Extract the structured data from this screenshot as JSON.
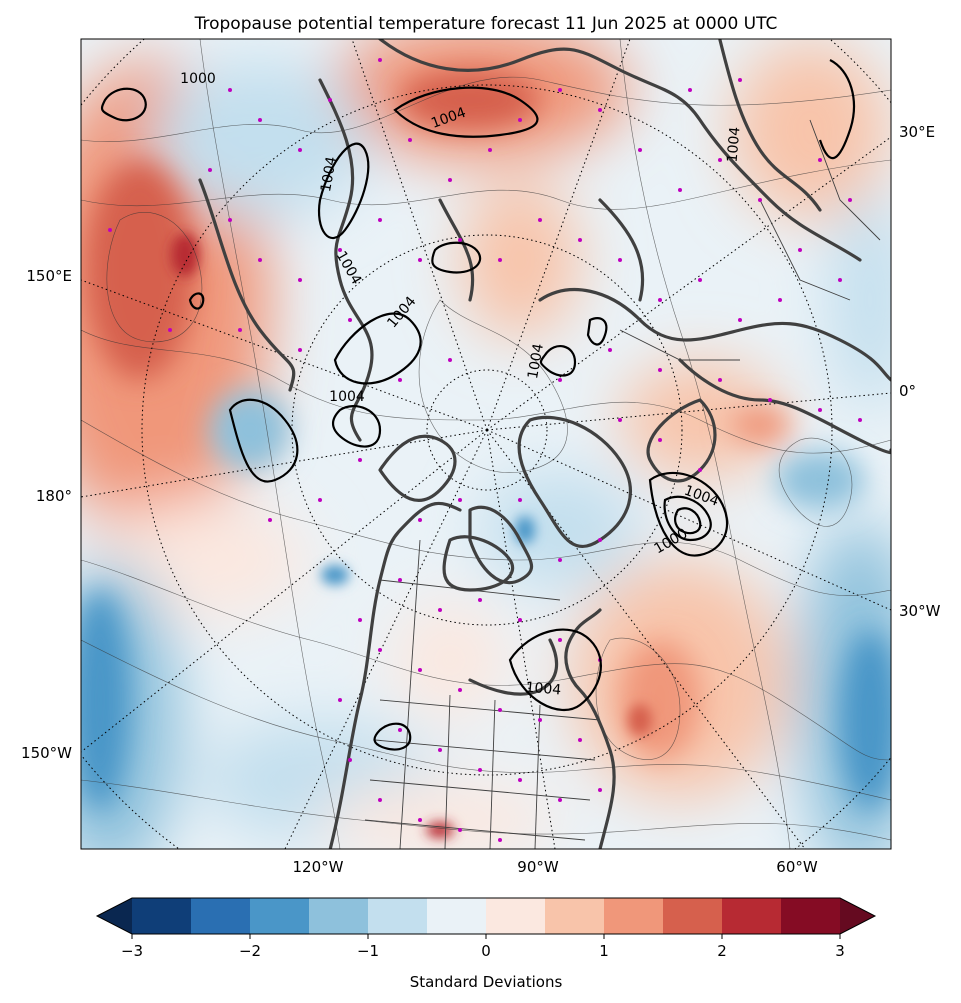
{
  "title": "Tropopause potential temperature forecast 11 Jun 2025 at 0000 UTC",
  "map": {
    "projection": "north-polar-stereographic",
    "axis_labels": {
      "bottom": [
        "120°W",
        "90°W",
        "60°W"
      ],
      "left": [
        "150°E",
        "180°",
        "150°W"
      ],
      "right": [
        "30°E",
        "0°",
        "30°W"
      ]
    },
    "pressure_contour_labels": [
      "1004",
      "1004",
      "1004",
      "1004",
      "1004",
      "1004",
      "1004",
      "1000",
      "1004",
      "1004",
      "1000"
    ],
    "colors": {
      "coastline": "#404040",
      "pressure_contour": "#000000",
      "station_marker": "#c000c0",
      "graticule": "#000000"
    }
  },
  "colorbar": {
    "label": "Standard Deviations",
    "ticks": [
      "−3",
      "−2",
      "−1",
      "0",
      "1",
      "2",
      "3"
    ],
    "range": [
      -3,
      3
    ],
    "step": 0.5,
    "extend": "both",
    "colormap": "RdBu_r",
    "colors": [
      "#0f3e78",
      "#2a6fb2",
      "#4a96c8",
      "#8ec1dc",
      "#c3dfee",
      "#eaf2f7",
      "#fbe8e0",
      "#f8c4aa",
      "#f0977a",
      "#d6604d",
      "#b72a33",
      "#850c24"
    ],
    "extend_low_color": "#0a2750",
    "extend_high_color": "#650a20"
  }
}
